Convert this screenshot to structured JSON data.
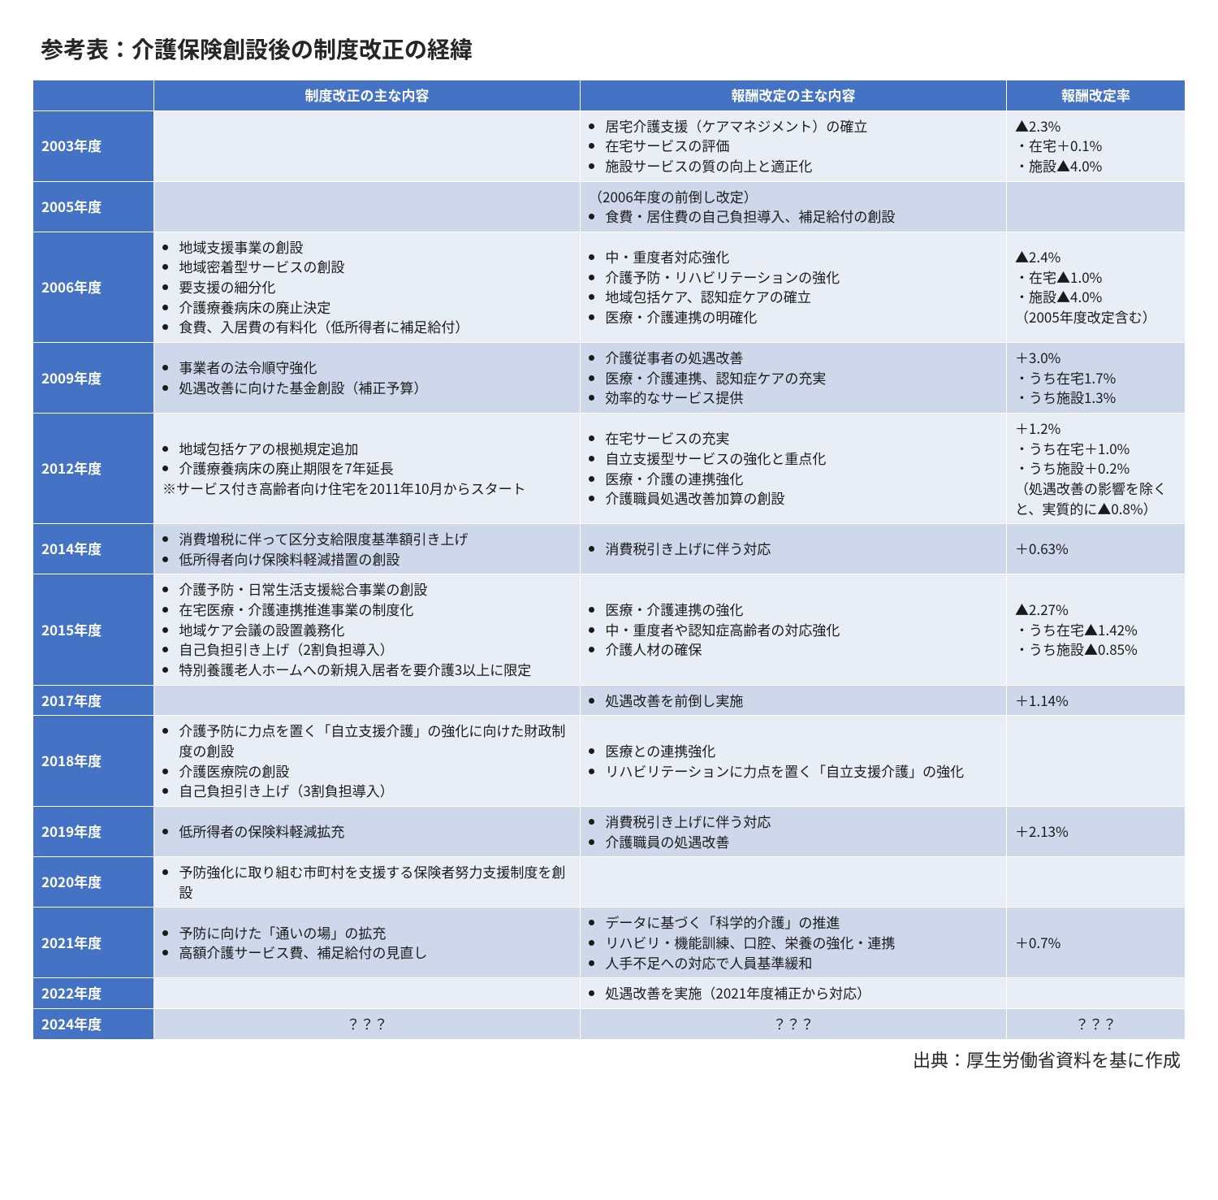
{
  "title": "参考表：介護保険創設後の制度改正の経緯",
  "source": "出典：厚生労働省資料を基に作成",
  "headers": {
    "blank": "",
    "col1": "制度改正の主な内容",
    "col2": "報酬改定の主な内容",
    "col3": "報酬改定率"
  },
  "colors": {
    "header_bg": "#4472c4",
    "header_fg": "#ffffff",
    "row_bg_a": "#e9edf6",
    "row_bg_b": "#cfd7ea",
    "border": "#ffffff",
    "text": "#1a1a1a"
  },
  "typography": {
    "title_fontsize_pt": 21,
    "body_fontsize_pt": 12.5,
    "source_fontsize_pt": 16
  },
  "rows": [
    {
      "year": "2003年度",
      "sys": [],
      "pay": [
        "居宅介護支援（ケアマネジメント）の確立",
        "在宅サービスの評価",
        "施設サービスの質の向上と適正化"
      ],
      "rate": "▲2.3%\n・在宅＋0.1%\n・施設▲4.0%"
    },
    {
      "year": "2005年度",
      "sys": [],
      "pay_plain": "（2006年度の前倒し改定）",
      "pay": [
        "食費・居住費の自己負担導入、補足給付の創設"
      ],
      "rate": ""
    },
    {
      "year": "2006年度",
      "sys": [
        "地域支援事業の創設",
        "地域密着型サービスの創設",
        "要支援の細分化",
        "介護療養病床の廃止決定",
        "食費、入居費の有料化（低所得者に補足給付）"
      ],
      "pay": [
        "中・重度者対応強化",
        "介護予防・リハビリテーションの強化",
        "地域包括ケア、認知症ケアの確立",
        "医療・介護連携の明確化"
      ],
      "rate": "▲2.4%\n・在宅▲1.0%\n・施設▲4.0%\n（2005年度改定含む）"
    },
    {
      "year": "2009年度",
      "sys": [
        "事業者の法令順守強化",
        "処遇改善に向けた基金創設（補正予算）"
      ],
      "pay": [
        "介護従事者の処遇改善",
        "医療・介護連携、認知症ケアの充実",
        "効率的なサービス提供"
      ],
      "rate": "＋3.0%\n・うち在宅1.7%\n・うち施設1.3%"
    },
    {
      "year": "2012年度",
      "sys": [
        "地域包括ケアの根拠規定追加",
        "介護療養病床の廃止期限を7年延長"
      ],
      "sys_extra": "※サービス付き高齢者向け住宅を2011年10月からスタート",
      "pay": [
        "在宅サービスの充実",
        "自立支援型サービスの強化と重点化",
        "医療・介護の連携強化",
        "介護職員処遇改善加算の創設"
      ],
      "rate": "＋1.2%\n・うち在宅＋1.0%\n・うち施設＋0.2%\n（処遇改善の影響を除くと、実質的に▲0.8%）"
    },
    {
      "year": "2014年度",
      "sys": [
        "消費増税に伴って区分支給限度基準額引き上げ",
        "低所得者向け保険料軽減措置の創設"
      ],
      "pay": [
        "消費税引き上げに伴う対応"
      ],
      "rate": "＋0.63%"
    },
    {
      "year": "2015年度",
      "sys": [
        "介護予防・日常生活支援総合事業の創設",
        "在宅医療・介護連携推進事業の制度化",
        "地域ケア会議の設置義務化",
        "自己負担引き上げ（2割負担導入）",
        "特別養護老人ホームへの新規入居者を要介護3以上に限定"
      ],
      "pay": [
        "医療・介護連携の強化",
        "中・重度者や認知症高齢者の対応強化",
        "介護人材の確保"
      ],
      "rate": "▲2.27%\n・うち在宅▲1.42%\n・うち施設▲0.85%"
    },
    {
      "year": "2017年度",
      "sys": [],
      "pay": [
        "処遇改善を前倒し実施"
      ],
      "rate": "＋1.14%"
    },
    {
      "year": "2018年度",
      "sys": [
        "介護予防に力点を置く「自立支援介護」の強化に向けた財政制度の創設",
        "介護医療院の創設",
        "自己負担引き上げ（3割負担導入）"
      ],
      "pay": [
        "医療との連携強化",
        "リハビリテーションに力点を置く「自立支援介護」の強化"
      ],
      "rate": ""
    },
    {
      "year": "2019年度",
      "sys": [
        "低所得者の保険料軽減拡充"
      ],
      "pay": [
        "消費税引き上げに伴う対応",
        "介護職員の処遇改善"
      ],
      "rate": "＋2.13%"
    },
    {
      "year": "2020年度",
      "sys": [
        "予防強化に取り組む市町村を支援する保険者努力支援制度を創設"
      ],
      "pay": [],
      "rate": ""
    },
    {
      "year": "2021年度",
      "sys": [
        "予防に向けた「通いの場」の拡充",
        "高額介護サービス費、補足給付の見直し"
      ],
      "pay": [
        "データに基づく「科学的介護」の推進",
        "リハビリ・機能訓練、口腔、栄養の強化・連携",
        "人手不足への対応で人員基準緩和"
      ],
      "rate": "＋0.7%"
    },
    {
      "year": "2022年度",
      "sys": [],
      "pay": [
        "処遇改善を実施（2021年度補正から対応）"
      ],
      "rate": ""
    },
    {
      "year": "2024年度",
      "sys_center": "？？？",
      "pay_center": "？？？",
      "rate_center": "？？？"
    }
  ]
}
